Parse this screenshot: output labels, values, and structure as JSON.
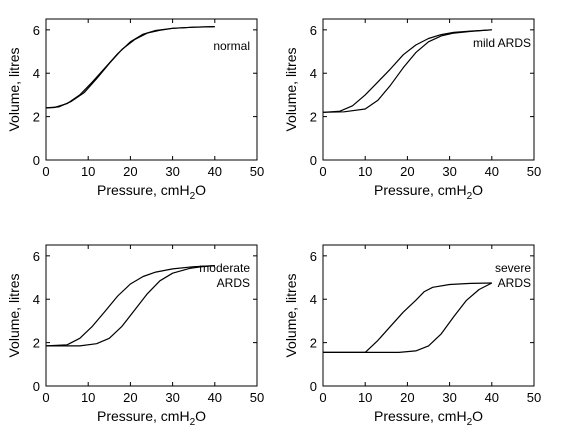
{
  "chart_data": [
    {
      "type": "line",
      "annotation": "normal",
      "xlabel": "Pressure, cmH",
      "xlabel_sub": "2",
      "xlabel_tail": "O",
      "ylabel": "Volume, litres",
      "xlim": [
        0,
        50
      ],
      "ylim": [
        0,
        6.5
      ],
      "xticks": [
        0,
        10,
        20,
        30,
        40,
        50
      ],
      "yticks": [
        0,
        2,
        4,
        6
      ],
      "grid": false,
      "series": [
        {
          "x": [
            0,
            2,
            5,
            8,
            11,
            14,
            17,
            20,
            23,
            26,
            30,
            35,
            40
          ],
          "values": [
            2.4,
            2.42,
            2.6,
            3.0,
            3.6,
            4.25,
            4.9,
            5.45,
            5.8,
            5.97,
            6.07,
            6.12,
            6.15
          ]
        },
        {
          "x": [
            0,
            3,
            6,
            9,
            12,
            15,
            18,
            21,
            24,
            27,
            30,
            35,
            40
          ],
          "values": [
            2.4,
            2.45,
            2.7,
            3.1,
            3.75,
            4.45,
            5.1,
            5.55,
            5.85,
            5.98,
            6.07,
            6.12,
            6.15
          ]
        }
      ]
    },
    {
      "type": "line",
      "annotation": "mild ARDS",
      "xlabel": "Pressure, cmH",
      "xlabel_sub": "2",
      "xlabel_tail": "O",
      "ylabel": "Volume, litres",
      "xlim": [
        0,
        50
      ],
      "ylim": [
        0,
        6.5
      ],
      "xticks": [
        0,
        10,
        20,
        30,
        40,
        50
      ],
      "yticks": [
        0,
        2,
        4,
        6
      ],
      "grid": false,
      "series": [
        {
          "x": [
            0,
            4,
            7,
            10,
            13,
            16,
            19,
            22,
            25,
            28,
            31,
            35,
            40
          ],
          "values": [
            2.2,
            2.25,
            2.5,
            3.0,
            3.6,
            4.2,
            4.85,
            5.3,
            5.6,
            5.78,
            5.88,
            5.94,
            6.0
          ]
        },
        {
          "x": [
            0,
            5,
            10,
            13,
            16,
            19,
            22,
            25,
            28,
            31,
            35,
            40
          ],
          "values": [
            2.2,
            2.22,
            2.35,
            2.75,
            3.45,
            4.25,
            4.95,
            5.45,
            5.72,
            5.85,
            5.93,
            6.0
          ]
        }
      ]
    },
    {
      "type": "line",
      "annotation": "moderate ARDS",
      "annotation_lines": [
        "moderate",
        "ARDS"
      ],
      "xlabel": "Pressure, cmH",
      "xlabel_sub": "2",
      "xlabel_tail": "O",
      "ylabel": "Volume, litres",
      "xlim": [
        0,
        50
      ],
      "ylim": [
        0,
        6.5
      ],
      "xticks": [
        0,
        10,
        20,
        30,
        40,
        50
      ],
      "yticks": [
        0,
        2,
        4,
        6
      ],
      "grid": false,
      "series": [
        {
          "x": [
            0,
            5,
            8,
            11,
            14,
            17,
            20,
            23,
            26,
            30,
            35,
            40
          ],
          "values": [
            1.85,
            1.9,
            2.2,
            2.75,
            3.45,
            4.15,
            4.7,
            5.05,
            5.25,
            5.4,
            5.5,
            5.55
          ]
        },
        {
          "x": [
            0,
            8,
            12,
            15,
            18,
            21,
            24,
            27,
            30,
            34,
            37,
            40
          ],
          "values": [
            1.85,
            1.85,
            1.95,
            2.2,
            2.75,
            3.5,
            4.25,
            4.85,
            5.2,
            5.42,
            5.5,
            5.55
          ]
        }
      ]
    },
    {
      "type": "line",
      "annotation": "severe ARDS",
      "annotation_lines": [
        "severe",
        "ARDS"
      ],
      "xlabel": "Pressure, cmH",
      "xlabel_sub": "2",
      "xlabel_tail": "O",
      "ylabel": "Volume, litres",
      "xlim": [
        0,
        50
      ],
      "ylim": [
        0,
        6.5
      ],
      "xticks": [
        0,
        10,
        20,
        30,
        40,
        50
      ],
      "yticks": [
        0,
        2,
        4,
        6
      ],
      "grid": false,
      "series": [
        {
          "x": [
            0,
            10,
            13,
            16,
            19,
            22,
            24,
            26,
            30,
            35,
            40
          ],
          "values": [
            1.55,
            1.55,
            2.1,
            2.75,
            3.4,
            3.95,
            4.35,
            4.55,
            4.68,
            4.73,
            4.75
          ]
        },
        {
          "x": [
            0,
            18,
            22,
            25,
            28,
            31,
            34,
            37,
            40
          ],
          "values": [
            1.55,
            1.55,
            1.62,
            1.85,
            2.4,
            3.2,
            3.95,
            4.45,
            4.75
          ]
        }
      ]
    }
  ]
}
